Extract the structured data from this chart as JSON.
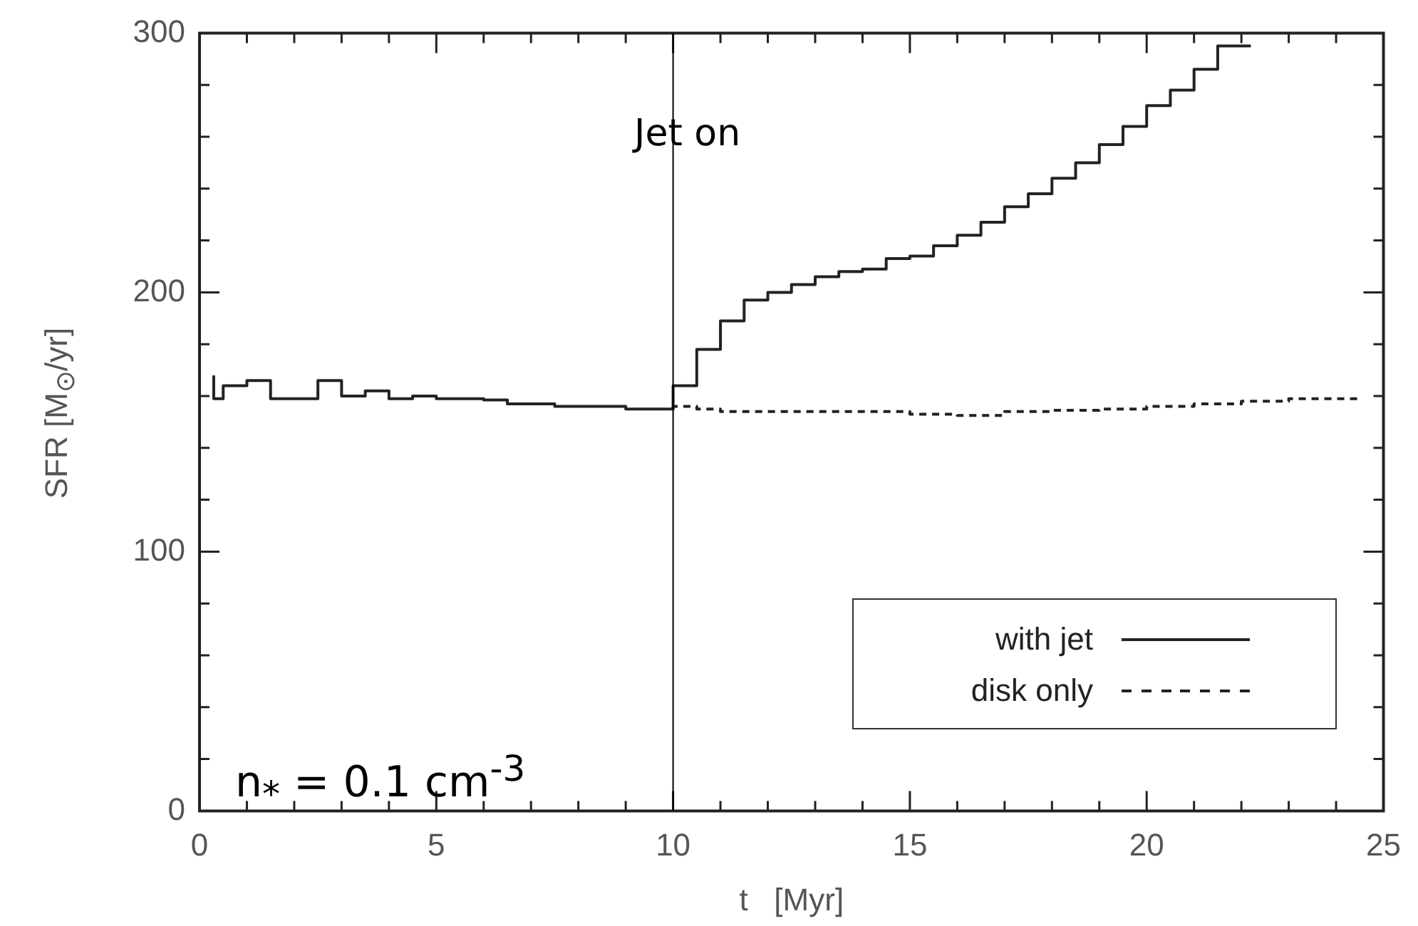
{
  "chart_data": {
    "type": "step",
    "xlabel": "t   [Myr]",
    "ylabel": "SFR  [M$_{⊙}$/yr]",
    "xlim": [
      0,
      25
    ],
    "ylim": [
      0,
      300
    ],
    "xticks": [
      0,
      {
        "value": 1,
        "label": null
      },
      {
        "value": 2,
        "label": null
      },
      {
        "value": 3,
        "label": null
      },
      {
        "value": 4,
        "label": null
      },
      5,
      {
        "value": 6,
        "label": null
      },
      {
        "value": 7,
        "label": null
      },
      {
        "value": 8,
        "label": null
      },
      {
        "value": 9,
        "label": null
      },
      10,
      {
        "value": 11,
        "label": null
      },
      {
        "value": 12,
        "label": null
      },
      {
        "value": 13,
        "label": null
      },
      {
        "value": 14,
        "label": null
      },
      15,
      {
        "value": 16,
        "label": null
      },
      {
        "value": 17,
        "label": null
      },
      {
        "value": 18,
        "label": null
      },
      {
        "value": 19,
        "label": null
      },
      20,
      {
        "value": 21,
        "label": null
      },
      {
        "value": 22,
        "label": null
      },
      {
        "value": 23,
        "label": null
      },
      {
        "value": 24,
        "label": null
      },
      25
    ],
    "yticks": [
      0,
      {
        "value": 20,
        "label": null
      },
      {
        "value": 40,
        "label": null
      },
      {
        "value": 60,
        "label": null
      },
      {
        "value": 80,
        "label": null
      },
      100,
      {
        "value": 120,
        "label": null
      },
      {
        "value": 140,
        "label": null
      },
      {
        "value": 160,
        "label": null
      },
      {
        "value": 180,
        "label": null
      },
      200,
      {
        "value": 220,
        "label": null
      },
      {
        "value": 240,
        "label": null
      },
      {
        "value": 260,
        "label": null
      },
      {
        "value": 280,
        "label": null
      },
      300
    ],
    "grid": false,
    "legend": "bottom right",
    "series": [
      {
        "name": "with jet",
        "color": "#222222",
        "line_style": "solid",
        "x": [
          0.3,
          0.5,
          1,
          1.5,
          2,
          2.5,
          3,
          3.5,
          4,
          4.5,
          5,
          5.5,
          6,
          6.5,
          7,
          7.5,
          8,
          8.5,
          9,
          9.5,
          10,
          10.5,
          11,
          11.5,
          12,
          12.5,
          13,
          13.5,
          14,
          14.5,
          15,
          15.5,
          16,
          16.5,
          17,
          17.5,
          18,
          18.5,
          19,
          19.5,
          20,
          20.5,
          21,
          21.5,
          22,
          22.2
        ],
        "values": [
          168,
          159,
          164,
          166,
          159,
          159,
          166,
          160,
          162,
          159,
          160,
          159,
          159,
          158.5,
          157,
          157,
          156,
          156,
          156,
          155,
          155,
          164,
          178,
          189,
          197,
          200,
          203,
          206,
          208,
          209,
          213,
          214,
          218,
          222,
          227,
          233,
          238,
          244,
          250,
          257,
          264,
          272,
          278,
          286,
          295,
          295
        ]
      },
      {
        "name": "disk only",
        "color": "#222222",
        "line_style": "dashed",
        "x": [
          10,
          10.5,
          11,
          12,
          13,
          14,
          15,
          16,
          17,
          18,
          19,
          20,
          21,
          22,
          23,
          24,
          24.5
        ],
        "values": [
          155,
          156,
          155,
          154,
          154,
          154,
          154,
          153,
          152.5,
          154,
          154.5,
          155,
          156,
          157,
          158,
          159,
          159
        ]
      }
    ],
    "ref_lines": [
      {
        "axis": "x",
        "value": 10,
        "label": "Jet on"
      }
    ],
    "annotations": [
      "n$_{*}$ = 0.1 cm$^{-3}$"
    ]
  }
}
